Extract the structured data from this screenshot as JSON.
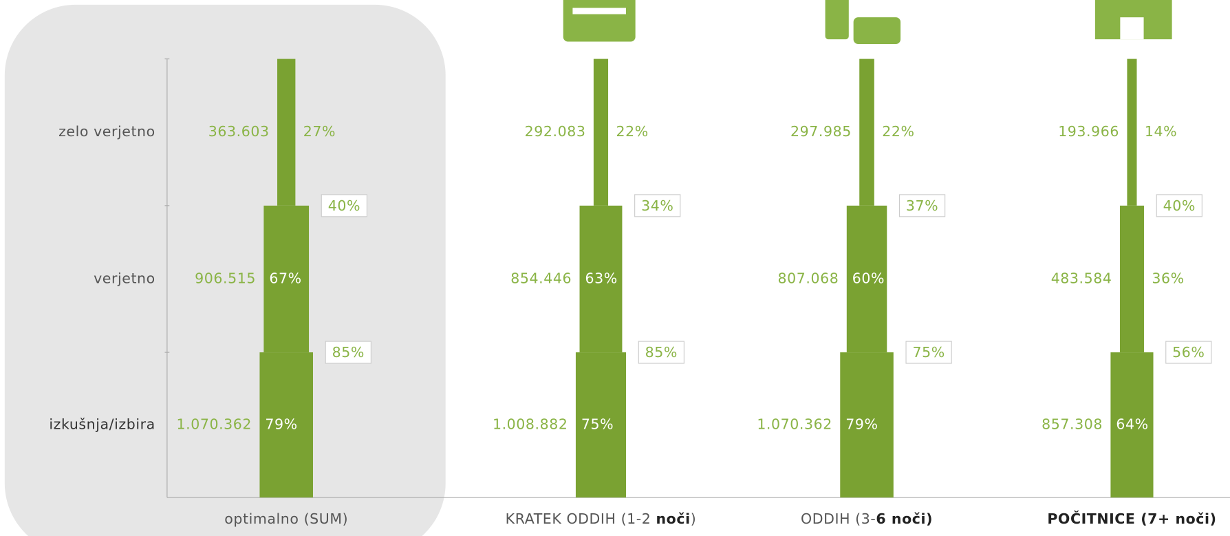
{
  "chart_data": {
    "type": "funnel",
    "categories": [
      "zelo verjetno",
      "verjetno",
      "izkušnja/izbira"
    ],
    "color": "#7aa232",
    "series": [
      {
        "name_parts": [
          {
            "text": "optimalno (SUM)",
            "bold": false
          }
        ],
        "values": [
          363603,
          906515,
          1070362
        ],
        "value_labels": [
          "363.603",
          "906.515",
          "1.070.362"
        ],
        "shares": [
          27,
          67,
          79
        ],
        "share_labels": [
          "27%",
          "67%",
          "79%"
        ],
        "conversions": [
          40,
          85
        ],
        "conversion_labels": [
          "40%",
          "85%"
        ]
      },
      {
        "name_parts": [
          {
            "text": "KRATEK ODDIH (1-2 ",
            "bold": false
          },
          {
            "text": "noči",
            "bold": true
          },
          {
            "text": ")",
            "bold": false
          }
        ],
        "values": [
          292083,
          854446,
          1008882
        ],
        "value_labels": [
          "292.083",
          "854.446",
          "1.008.882"
        ],
        "shares": [
          22,
          63,
          75
        ],
        "share_labels": [
          "22%",
          "63%",
          "75%"
        ],
        "conversions": [
          34,
          85
        ],
        "conversion_labels": [
          "34%",
          "85%"
        ]
      },
      {
        "name_parts": [
          {
            "text": "ODDIH (3-",
            "bold": false
          },
          {
            "text": "6 noči)",
            "bold": true
          }
        ],
        "values": [
          297985,
          807068,
          1070362
        ],
        "value_labels": [
          "297.985",
          "807.068",
          "1.070.362"
        ],
        "shares": [
          22,
          60,
          79
        ],
        "share_labels": [
          "22%",
          "60%",
          "79%"
        ],
        "conversions": [
          37,
          75
        ],
        "conversion_labels": [
          "37%",
          "75%"
        ]
      },
      {
        "name_parts": [
          {
            "text": "POČITNICE (7+ noči)",
            "bold": true
          }
        ],
        "values": [
          193966,
          483584,
          857308
        ],
        "value_labels": [
          "193.966",
          "483.584",
          "857.308"
        ],
        "shares": [
          14,
          36,
          64
        ],
        "share_labels": [
          "14%",
          "36%",
          "64%"
        ],
        "conversions": [
          40,
          56
        ],
        "conversion_labels": [
          "40%",
          "56%"
        ]
      }
    ]
  }
}
